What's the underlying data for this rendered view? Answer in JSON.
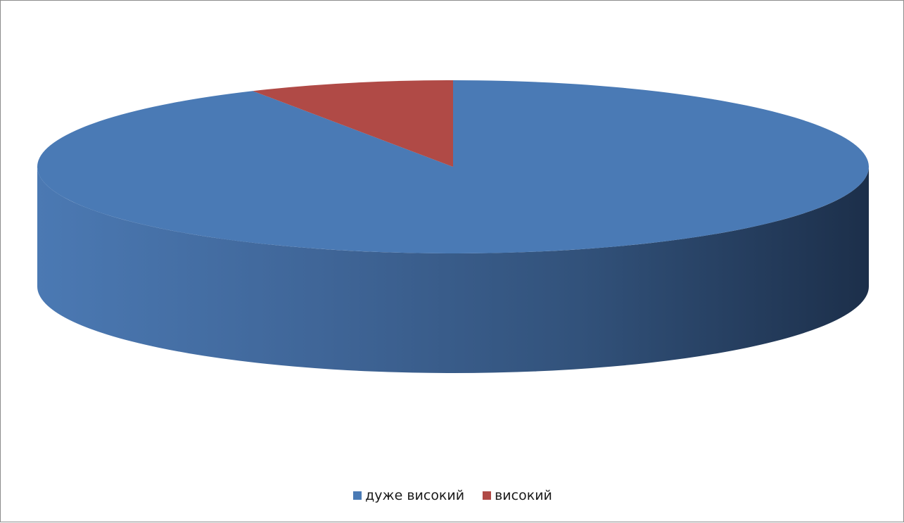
{
  "chart_data": {
    "type": "pie",
    "style": "3d",
    "title": "",
    "legend_position": "bottom",
    "slices": [
      {
        "label": "дуже високий",
        "value": 92,
        "color": "#4a7ab5"
      },
      {
        "label": "високий",
        "value": 8,
        "color": "#b04a46"
      }
    ]
  }
}
